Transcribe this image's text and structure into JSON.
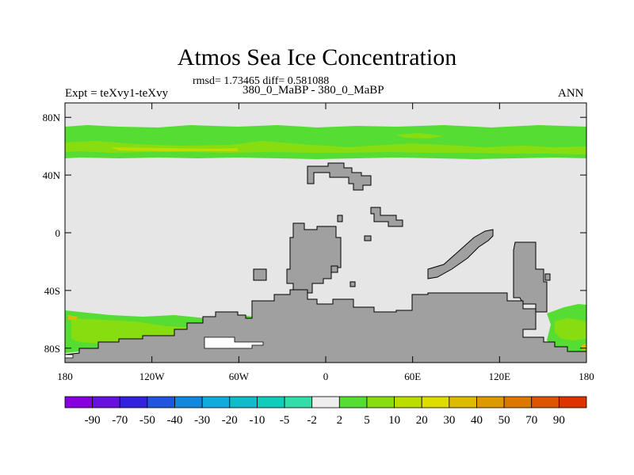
{
  "title": "Atmos Sea Ice Concentration",
  "stats_line": "rmsd= 1.73465 diff= 0.581088",
  "experiment_label": "Expt = teXvy1-teXvy",
  "subtitle": "380_0_MaBP - 380_0_MaBP",
  "season": "ANN",
  "map": {
    "projection": "cylindrical equidistant",
    "lon_range": [
      -180,
      180
    ],
    "lat_range": [
      -90,
      90
    ],
    "lat_ticks": [
      {
        "value": 80,
        "label": "80N"
      },
      {
        "value": 40,
        "label": "40N"
      },
      {
        "value": 0,
        "label": "0"
      },
      {
        "value": -40,
        "label": "40S"
      },
      {
        "value": -80,
        "label": "80S"
      }
    ],
    "lon_ticks": [
      {
        "value": -180,
        "label": "180"
      },
      {
        "value": -120,
        "label": "120W"
      },
      {
        "value": -60,
        "label": "60W"
      },
      {
        "value": 0,
        "label": "0"
      },
      {
        "value": 60,
        "label": "60E"
      },
      {
        "value": 120,
        "label": "120E"
      },
      {
        "value": 180,
        "label": "180"
      }
    ],
    "colors": {
      "background_field": "#e6e6e6",
      "land": "#a0a0a0",
      "level_2_5": "#55dd33",
      "level_5_10": "#88dd11",
      "level_10_20": "#bbdd00",
      "level_20_30": "#ddbb00"
    }
  },
  "colorbar": {
    "labels": [
      "-90",
      "-70",
      "-50",
      "-40",
      "-30",
      "-20",
      "-10",
      "-5",
      "-2",
      "2",
      "5",
      "10",
      "20",
      "30",
      "40",
      "50",
      "70",
      "90"
    ],
    "colors": [
      "#8800dd",
      "#6611dd",
      "#3322dd",
      "#2255dd",
      "#1188dd",
      "#11aadd",
      "#11bbcc",
      "#11ccbb",
      "#33ddaa",
      "#eeeeee",
      "#55dd33",
      "#88dd11",
      "#bbdd00",
      "#dddd00",
      "#ddbb00",
      "#dd9900",
      "#dd7700",
      "#dd5500",
      "#dd3300"
    ]
  }
}
